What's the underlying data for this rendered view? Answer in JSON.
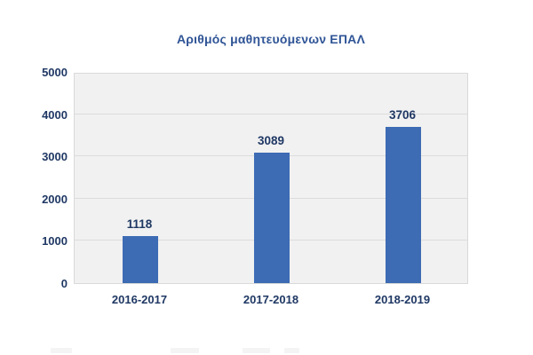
{
  "chart_data": {
    "type": "bar",
    "title": "Αριθμός μαθητευόμενων ΕΠΑΛ",
    "categories": [
      "2016-2017",
      "2017-2018",
      "2018-2019"
    ],
    "values": [
      1118,
      3089,
      3706
    ],
    "value_labels": [
      "1118",
      "3089",
      "3706"
    ],
    "xlabel": "",
    "ylabel": "",
    "ylim": [
      0,
      5000
    ],
    "ytick_values": [
      0,
      1000,
      2000,
      3000,
      4000,
      5000
    ],
    "ytick_labels": [
      "0",
      "1000",
      "2000",
      "3000",
      "4000",
      "5000"
    ],
    "grid": true,
    "legend": false,
    "colors": {
      "bar": "#3D6BB4",
      "title": "#2F5496",
      "label": "#1F3864",
      "plot_background": "#f1f1f1",
      "gridline": "#dcdcdc",
      "plot_border": "#d9d9d9"
    }
  }
}
